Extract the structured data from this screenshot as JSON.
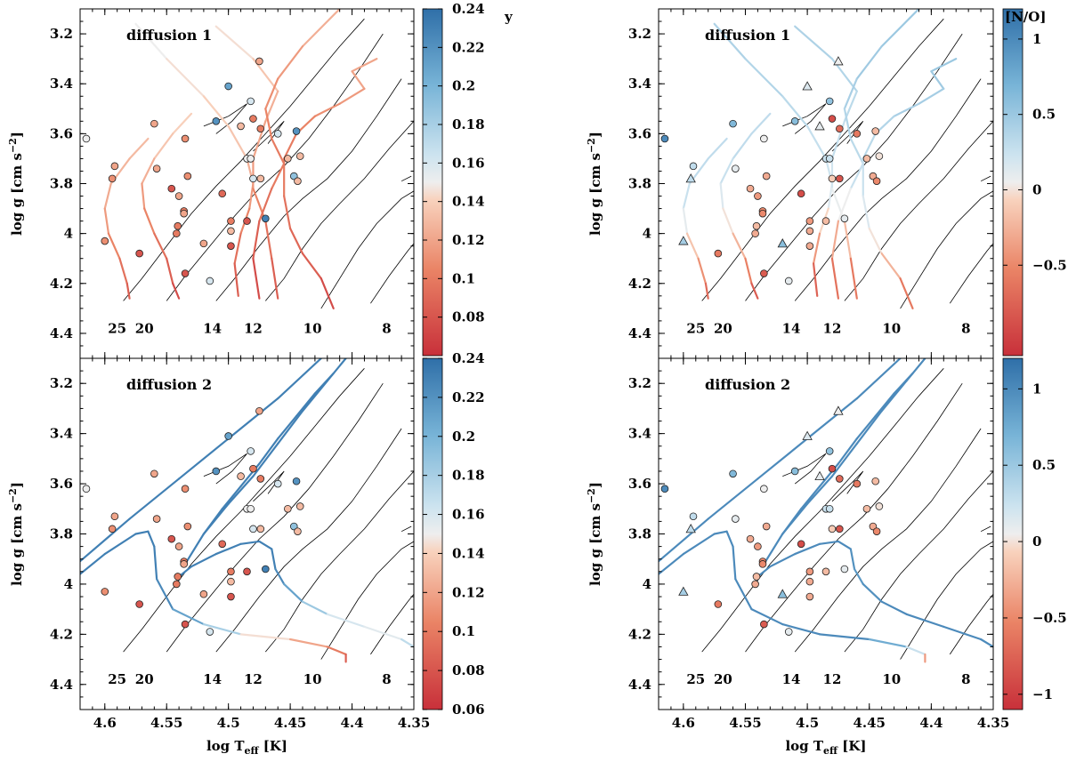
{
  "chart_data": {
    "type": "scatter",
    "x_axis": {
      "label": "log T",
      "label_sub": "eff",
      "label_unit": "[K]",
      "range": [
        4.62,
        4.35
      ],
      "ticks": [
        "4.6",
        "4.55",
        "4.5",
        "4.45",
        "4.4",
        "4.35"
      ]
    },
    "y_axis": {
      "label": "log g [cm s",
      "label_sup": "−2",
      "label_end": "]",
      "range": [
        4.5,
        3.1
      ],
      "ticks": [
        "3.2",
        "3.4",
        "3.6",
        "3.8",
        "4",
        "4.2",
        "4.4"
      ]
    },
    "colorbars": [
      {
        "id": "y_top",
        "label": "y",
        "ticks": [
          "0.24",
          "0.22",
          "0.2",
          "0.18",
          "0.16",
          "0.14",
          "0.12",
          "0.1",
          "0.08"
        ]
      },
      {
        "id": "y_bottom",
        "label": "",
        "ticks": [
          "0.24",
          "0.22",
          "0.2",
          "0.18",
          "0.16",
          "0.14",
          "0.12",
          "0.1",
          "0.08",
          "0.06"
        ]
      },
      {
        "id": "no_top",
        "label": "[N/O]",
        "ticks": [
          "1",
          "0.5",
          "0",
          "−0.5"
        ]
      },
      {
        "id": "no_bottom",
        "label": "",
        "ticks": [
          "1",
          "0.5",
          "0",
          "−0.5",
          "−1"
        ]
      }
    ],
    "panels": [
      {
        "id": "top-left",
        "label": "diffusion 1",
        "colorbar": "y_top"
      },
      {
        "id": "top-right",
        "label": "diffusion 1",
        "colorbar": "no_top"
      },
      {
        "id": "bottom-left",
        "label": "diffusion 2",
        "colorbar": "y_bottom"
      },
      {
        "id": "bottom-right",
        "label": "diffusion 2",
        "colorbar": "no_bottom"
      }
    ],
    "mass_labels": [
      "25",
      "20",
      "14",
      "12",
      "10",
      "8"
    ],
    "mass_label_teff": [
      4.59,
      4.568,
      4.513,
      4.48,
      4.432,
      4.372
    ],
    "mass_label_logg": 4.38,
    "stars": [
      [
        4.615,
        3.62,
        0.15,
        1.0,
        "o"
      ],
      [
        4.592,
        3.73,
        0.12,
        0.3,
        "o"
      ],
      [
        4.594,
        3.78,
        0.11,
        0.3,
        "t"
      ],
      [
        4.6,
        4.03,
        0.11,
        0.45,
        "t"
      ],
      [
        4.572,
        4.08,
        0.08,
        -0.6,
        "o"
      ],
      [
        4.56,
        3.56,
        0.12,
        0.65,
        "o"
      ],
      [
        4.558,
        3.74,
        0.12,
        0.1,
        "o"
      ],
      [
        4.546,
        3.82,
        0.08,
        -0.3,
        "o"
      ],
      [
        4.54,
        3.85,
        0.12,
        -0.4,
        "o"
      ],
      [
        4.535,
        3.62,
        0.11,
        0.05,
        "o"
      ],
      [
        4.533,
        3.77,
        0.11,
        -0.3,
        "o"
      ],
      [
        4.536,
        3.91,
        0.1,
        -0.5,
        "o"
      ],
      [
        4.536,
        3.92,
        0.12,
        -0.5,
        "o"
      ],
      [
        4.541,
        3.97,
        0.1,
        -0.2,
        "o"
      ],
      [
        4.542,
        4.0,
        0.1,
        -0.3,
        "o"
      ],
      [
        4.535,
        4.16,
        0.08,
        -0.8,
        "o"
      ],
      [
        4.52,
        4.04,
        0.12,
        0.6,
        "t"
      ],
      [
        4.515,
        4.19,
        0.16,
        0.1,
        "o"
      ],
      [
        4.51,
        3.55,
        0.22,
        0.6,
        "o"
      ],
      [
        4.5,
        3.41,
        0.21,
        0.15,
        "t"
      ],
      [
        4.505,
        3.84,
        0.09,
        -0.9,
        "o"
      ],
      [
        4.498,
        3.95,
        0.1,
        -0.4,
        "o"
      ],
      [
        4.498,
        3.99,
        0.13,
        -0.3,
        "o"
      ],
      [
        4.498,
        4.05,
        0.08,
        -0.3,
        "o"
      ],
      [
        4.475,
        3.31,
        0.12,
        0.05,
        "t"
      ],
      [
        4.482,
        3.47,
        0.16,
        0.55,
        "o"
      ],
      [
        4.48,
        3.54,
        0.1,
        -0.9,
        "o"
      ],
      [
        4.49,
        3.57,
        0.13,
        0.1,
        "t"
      ],
      [
        4.474,
        3.58,
        0.1,
        -0.7,
        "o"
      ],
      [
        4.485,
        3.7,
        0.15,
        0.25,
        "o"
      ],
      [
        4.482,
        3.7,
        0.15,
        0.25,
        "o"
      ],
      [
        4.48,
        3.78,
        0.16,
        -0.1,
        "o"
      ],
      [
        4.474,
        3.78,
        0.13,
        -0.85,
        "o"
      ],
      [
        4.46,
        3.6,
        0.16,
        -0.6,
        "o"
      ],
      [
        4.47,
        3.94,
        0.23,
        0.1,
        "o"
      ],
      [
        4.485,
        3.95,
        0.08,
        -0.2,
        "o"
      ],
      [
        4.452,
        3.7,
        0.13,
        -0.2,
        "o"
      ],
      [
        4.445,
        3.59,
        0.22,
        -0.2,
        "o"
      ],
      [
        4.447,
        3.77,
        0.19,
        -0.3,
        "o"
      ],
      [
        4.444,
        3.79,
        0.13,
        -0.5,
        "o"
      ],
      [
        4.442,
        3.69,
        0.13,
        0.0,
        "o"
      ]
    ],
    "stars_fields": [
      "log_teff",
      "log_g",
      "y",
      "N/O",
      "marker"
    ]
  }
}
